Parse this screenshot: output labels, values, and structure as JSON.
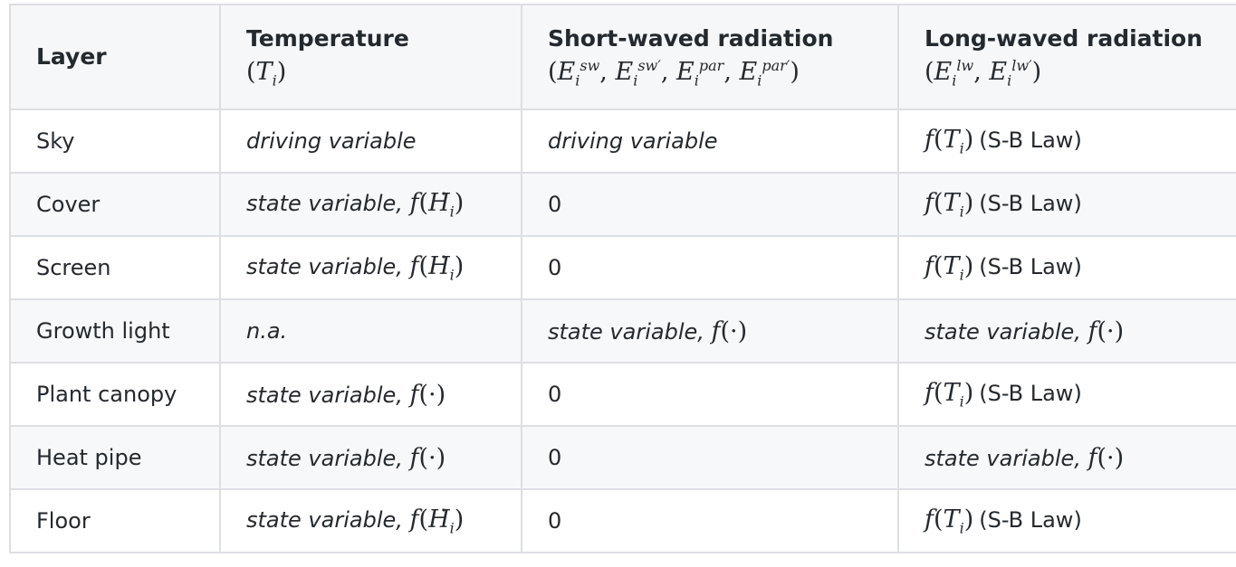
{
  "headers": {
    "layer": "Layer",
    "temperature": "Temperature",
    "temperature_symbol": "(T_i)",
    "short_wave": "Short-waved radiation",
    "short_wave_symbol": "(E_i^sw, E_i^sw', E_i^par, E_i^par')",
    "long_wave": "Long-waved radiation",
    "long_wave_symbol": "(E_i^lw, E_i^lw')"
  },
  "terms": {
    "driving": "driving variable",
    "state": "state variable,",
    "na": "n.a.",
    "zero": "0",
    "sb_law": "(S-B Law)",
    "f_T": "f(T_i)",
    "f_H": "f(Ḣ_i)",
    "f_dot": "f(·)"
  },
  "rows": [
    {
      "layer": "Sky",
      "temperature": "driving variable",
      "short_wave": "driving variable",
      "long_wave": "f(T_i) (S-B Law)"
    },
    {
      "layer": "Cover",
      "temperature": "state variable, f(Ḣ_i)",
      "short_wave": "0",
      "long_wave": "f(T_i) (S-B Law)"
    },
    {
      "layer": "Screen",
      "temperature": "state variable, f(Ḣ_i)",
      "short_wave": "0",
      "long_wave": "f(T_i) (S-B Law)"
    },
    {
      "layer": "Growth light",
      "temperature": "n.a.",
      "short_wave": "state variable, f(·)",
      "long_wave": "state variable, f(·)"
    },
    {
      "layer": "Plant canopy",
      "temperature": "state variable, f(·)",
      "short_wave": "0",
      "long_wave": "f(T_i) (S-B Law)"
    },
    {
      "layer": "Heat pipe",
      "temperature": "state variable, f(·)",
      "short_wave": "0",
      "long_wave": "state variable, f(·)"
    },
    {
      "layer": "Floor",
      "temperature": "state variable, f(Ḣ_i)",
      "short_wave": "0",
      "long_wave": "f(T_i) (S-B Law)"
    }
  ]
}
